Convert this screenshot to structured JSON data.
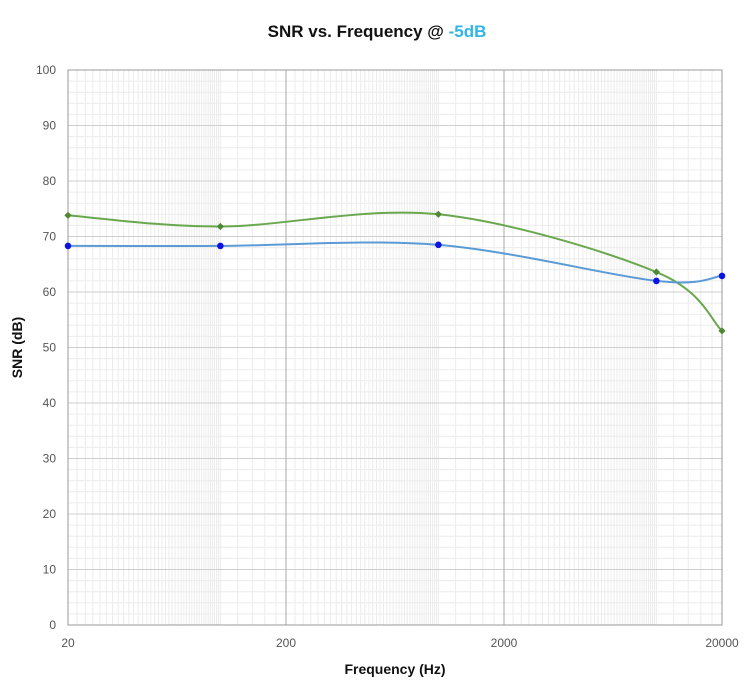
{
  "chart_data": {
    "type": "line",
    "title": {
      "prefix": "SNR vs. Frequency @ ",
      "highlight": "-5dB"
    },
    "xlabel": "Frequency (Hz)",
    "ylabel": "SNR (dB)",
    "x_scale": "log",
    "xlim": [
      20,
      20000
    ],
    "ylim": [
      0,
      100
    ],
    "x_ticks": [
      20,
      200,
      2000,
      20000
    ],
    "y_ticks": [
      0,
      10,
      20,
      30,
      40,
      50,
      60,
      70,
      80,
      90,
      100
    ],
    "grid": true,
    "legend": "none",
    "series": [
      {
        "color": "#6aa84f",
        "marker_color": "#4e8a35",
        "marker": "diamond",
        "points": [
          [
            20,
            73.8
          ],
          [
            100,
            71.8
          ],
          [
            1000,
            74.0
          ],
          [
            10000,
            63.6
          ],
          [
            20000,
            53.0
          ]
        ]
      },
      {
        "color": "#5b9bd5",
        "marker_color": "#0a14e0",
        "marker": "circle",
        "points": [
          [
            20,
            68.3
          ],
          [
            100,
            68.3
          ],
          [
            1000,
            68.5
          ],
          [
            10000,
            62.0
          ],
          [
            20000,
            62.9
          ]
        ]
      }
    ]
  }
}
